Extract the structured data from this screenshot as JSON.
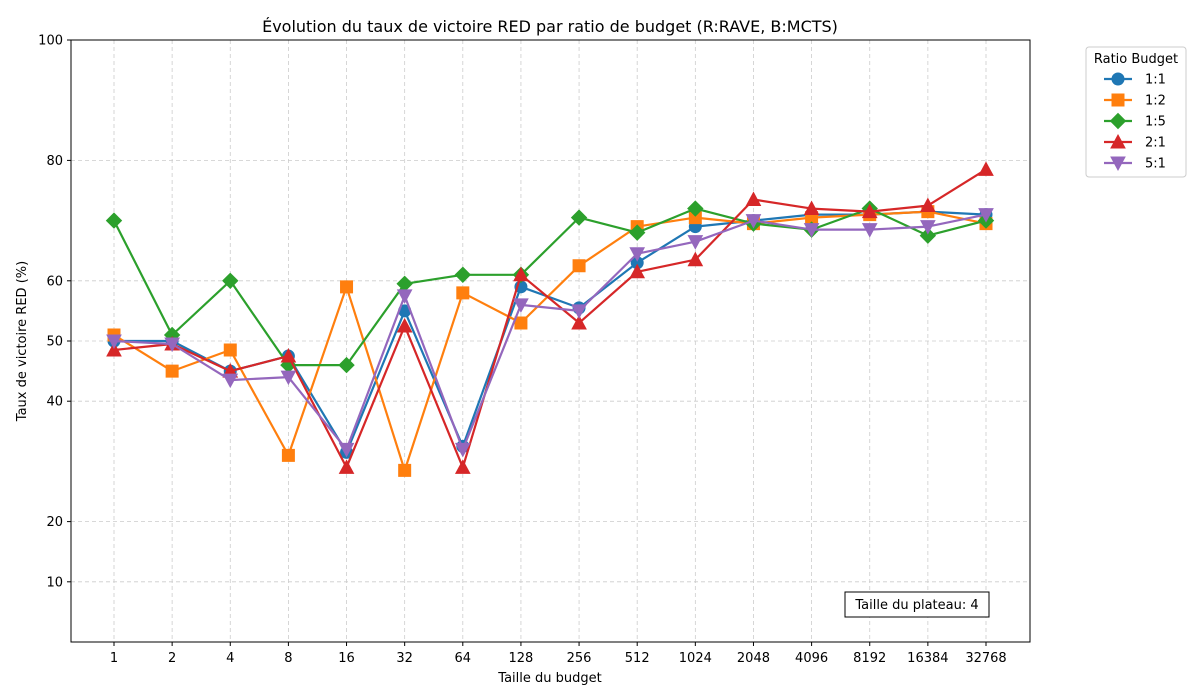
{
  "chart_data": {
    "type": "line",
    "title": "Évolution du taux de victoire RED par ratio de budget (R:RAVE, B:MCTS)",
    "xlabel": "Taille du budget",
    "ylabel": "Taux de victoire RED (%)",
    "x_scale": "log2",
    "categories": [
      "1",
      "2",
      "4",
      "8",
      "16",
      "32",
      "64",
      "128",
      "256",
      "512",
      "1024",
      "2048",
      "4096",
      "8192",
      "16384",
      "32768"
    ],
    "y_ticks": [
      10,
      20,
      40,
      50,
      60,
      80,
      100
    ],
    "ylim": [
      0,
      100
    ],
    "grid": true,
    "legend": {
      "title": "Ratio Budget",
      "placement": "outside-top-right"
    },
    "annotation": "Taille du plateau: 4",
    "series": [
      {
        "name": "1:1",
        "color": "#1f77b4",
        "marker": "circle",
        "values": [
          50,
          50,
          45,
          47.5,
          31.5,
          55,
          32.5,
          59,
          55.5,
          63,
          69,
          70,
          71,
          71,
          71.5,
          71
        ]
      },
      {
        "name": "1:2",
        "color": "#ff7f0e",
        "marker": "square",
        "values": [
          51,
          45,
          48.5,
          31,
          59,
          28.5,
          58,
          53,
          62.5,
          69,
          70.5,
          69.5,
          70.5,
          71,
          71.5,
          69.5
        ]
      },
      {
        "name": "1:5",
        "color": "#2ca02c",
        "marker": "diamond",
        "values": [
          70,
          51,
          60,
          46,
          46,
          59.5,
          61,
          61,
          70.5,
          68,
          72,
          69.5,
          68.5,
          72,
          67.5,
          70
        ]
      },
      {
        "name": "2:1",
        "color": "#d62728",
        "marker": "triangle-up",
        "values": [
          48.5,
          49.5,
          45,
          47.5,
          29,
          52.5,
          29,
          61,
          53,
          61.5,
          63.5,
          73.5,
          72,
          71.5,
          72.5,
          78.5
        ]
      },
      {
        "name": "5:1",
        "color": "#9467bd",
        "marker": "triangle-down",
        "values": [
          50,
          49.5,
          43.5,
          44,
          32,
          57.5,
          32,
          56,
          55,
          64.5,
          66.5,
          70,
          68.5,
          68.5,
          69,
          71
        ]
      }
    ]
  }
}
